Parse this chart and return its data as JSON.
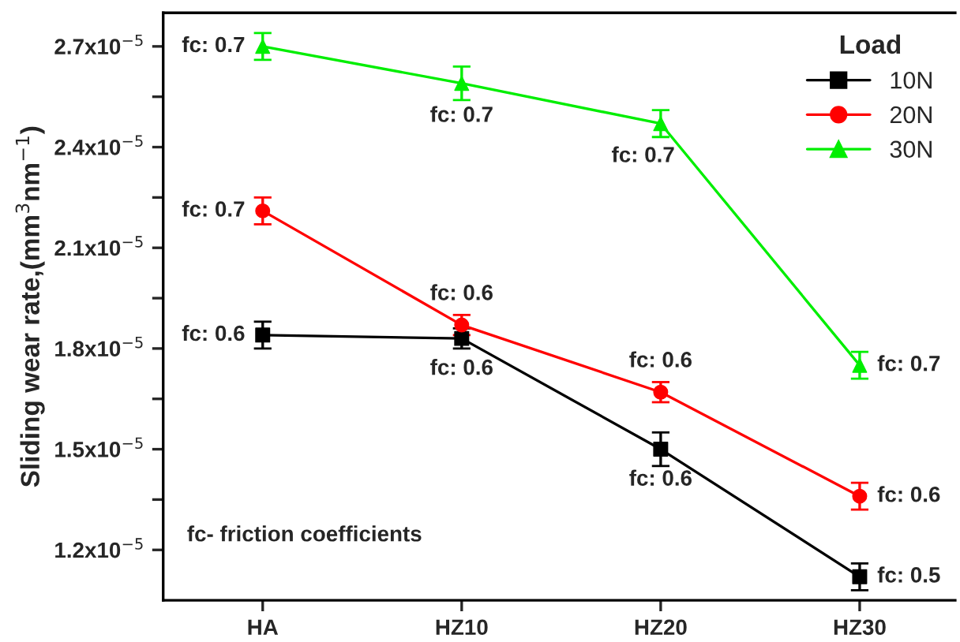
{
  "chart_data": {
    "type": "line",
    "ylabel": "Sliding wear rate,(mm$^{3}$nm$^{−1}$)",
    "legend_title": "Load",
    "categories": [
      "HA",
      "HZ10",
      "HZ20",
      "HZ30"
    ],
    "series": [
      {
        "name": "10N",
        "color": "#000000",
        "marker": "square",
        "values": [
          1.84e-05,
          1.83e-05,
          1.5e-05,
          1.12e-05
        ],
        "errors": [
          4e-07,
          3e-07,
          5e-07,
          4e-07
        ]
      },
      {
        "name": "20N",
        "color": "#ff0000",
        "marker": "circle",
        "values": [
          2.21e-05,
          1.87e-05,
          1.67e-05,
          1.36e-05
        ],
        "errors": [
          4e-07,
          3e-07,
          3e-07,
          4e-07
        ]
      },
      {
        "name": "30N",
        "color": "#00ee00",
        "marker": "triangle",
        "values": [
          2.7e-05,
          2.59e-05,
          2.47e-05,
          1.75e-05
        ],
        "errors": [
          4e-07,
          5e-07,
          4e-07,
          4e-07
        ]
      }
    ],
    "ylim": [
      1.05e-05,
      2.8e-05
    ],
    "yticks": [
      {
        "value": 1.2e-05,
        "label": "1.2x10$^{−5}$"
      },
      {
        "value": 1.35e-05,
        "label": null
      },
      {
        "value": 1.5e-05,
        "label": "1.5x10$^{−5}$"
      },
      {
        "value": 1.65e-05,
        "label": null
      },
      {
        "value": 1.8e-05,
        "label": "1.8x10$^{−5}$"
      },
      {
        "value": 1.95e-05,
        "label": null
      },
      {
        "value": 2.1e-05,
        "label": "2.1x10$^{−5}$"
      },
      {
        "value": 2.25e-05,
        "label": null
      },
      {
        "value": 2.4e-05,
        "label": "2.4x10$^{−5}$"
      },
      {
        "value": 2.55e-05,
        "label": null
      },
      {
        "value": 2.7e-05,
        "label": "2.7x10$^{−5}$"
      }
    ],
    "grid": false,
    "legend": "top right",
    "annotations": [
      {
        "text": "fc: 0.6",
        "x": "HA",
        "y": 1.84e-05
      },
      {
        "text": "fc: 0.6",
        "x": "HZ10",
        "y": 1.83e-05
      },
      {
        "text": "fc: 0.6",
        "x": "HZ20",
        "y": 1.5e-05
      },
      {
        "text": "fc: 0.5",
        "x": "HZ30",
        "y": 1.12e-05
      },
      {
        "text": "fc: 0.7",
        "x": "HA",
        "y": 2.21e-05
      },
      {
        "text": "fc: 0.6",
        "x": "HZ10",
        "y": 1.87e-05
      },
      {
        "text": "fc: 0.6",
        "x": "HZ20",
        "y": 1.67e-05
      },
      {
        "text": "fc: 0.6",
        "x": "HZ30",
        "y": 1.36e-05
      },
      {
        "text": "fc: 0.7",
        "x": "HA",
        "y": 2.7e-05
      },
      {
        "text": "fc: 0.7",
        "x": "HZ10",
        "y": 2.59e-05
      },
      {
        "text": "fc: 0.7",
        "x": "HZ20",
        "y": 2.47e-05
      },
      {
        "text": "fc: 0.7",
        "x": "HZ30",
        "y": 1.75e-05
      },
      "fc- friction coefficients"
    ]
  }
}
